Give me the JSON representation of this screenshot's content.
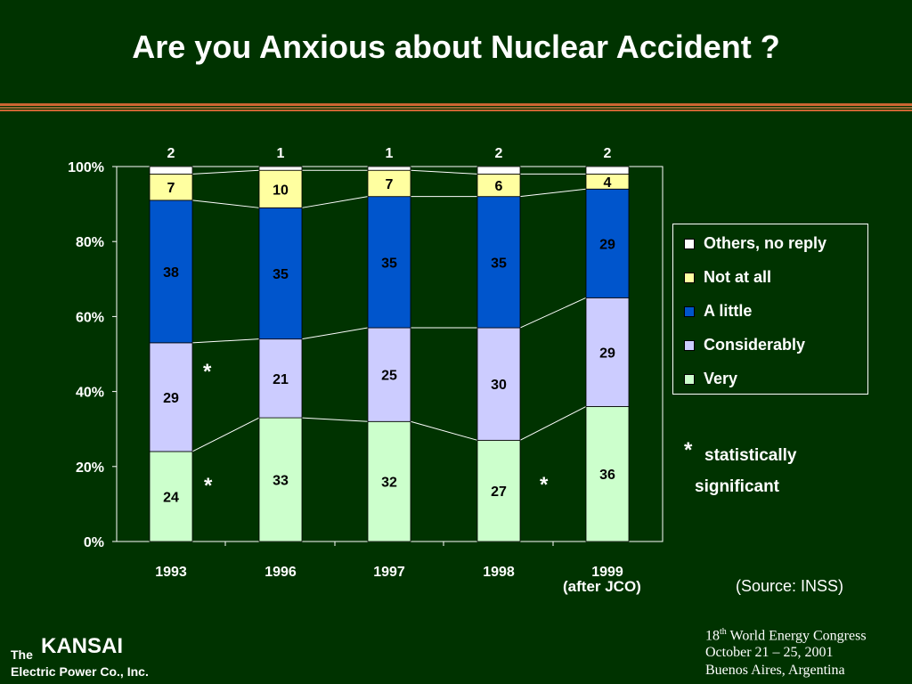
{
  "title": "Are you Anxious about Nuclear Accident ?",
  "colors": {
    "background": "#003300",
    "rule": "#cc6633",
    "Others, no reply": "#ffffff",
    "Not at all": "#ffffa0",
    "A little": "#0055cc",
    "Considerably": "#ccccff",
    "Very": "#ccffcc"
  },
  "chart_data": {
    "type": "bar",
    "stacked": true,
    "categories": [
      "1993",
      "1996",
      "1997",
      "1998",
      "1999"
    ],
    "category_sublabels": [
      "",
      "",
      "",
      "",
      "(after JCO)"
    ],
    "yticks": [
      "0%",
      "20%",
      "40%",
      "60%",
      "80%",
      "100%"
    ],
    "ylim": [
      0,
      100
    ],
    "series": [
      {
        "name": "Very",
        "values": [
          24,
          33,
          32,
          27,
          36
        ]
      },
      {
        "name": "Considerably",
        "values": [
          29,
          21,
          25,
          30,
          29
        ]
      },
      {
        "name": "A little",
        "values": [
          38,
          35,
          35,
          35,
          29
        ]
      },
      {
        "name": "Not at all",
        "values": [
          7,
          10,
          7,
          6,
          4
        ]
      },
      {
        "name": "Others, no reply",
        "values": [
          2,
          1,
          1,
          2,
          2
        ]
      }
    ],
    "legend": {
      "position": "right",
      "entries": [
        "Others, no reply",
        "Not at all",
        "A little",
        "Considerably",
        "Very"
      ]
    },
    "significance_marks": [
      "*",
      "*",
      "*"
    ],
    "grid": false
  },
  "notes": {
    "star": "*",
    "line1": "statistically",
    "line2": "significant",
    "source": "(Source: INSS)"
  },
  "logo": {
    "the": "The",
    "name": "KANSAI",
    "sub": "Electric Power Co., Inc."
  },
  "conference": {
    "sup_num": "18",
    "sup_suffix": "th",
    "line1_rest": " World Energy Congress",
    "line2": "October 21 – 25, 2001",
    "line3": "Buenos Aires, Argentina"
  }
}
